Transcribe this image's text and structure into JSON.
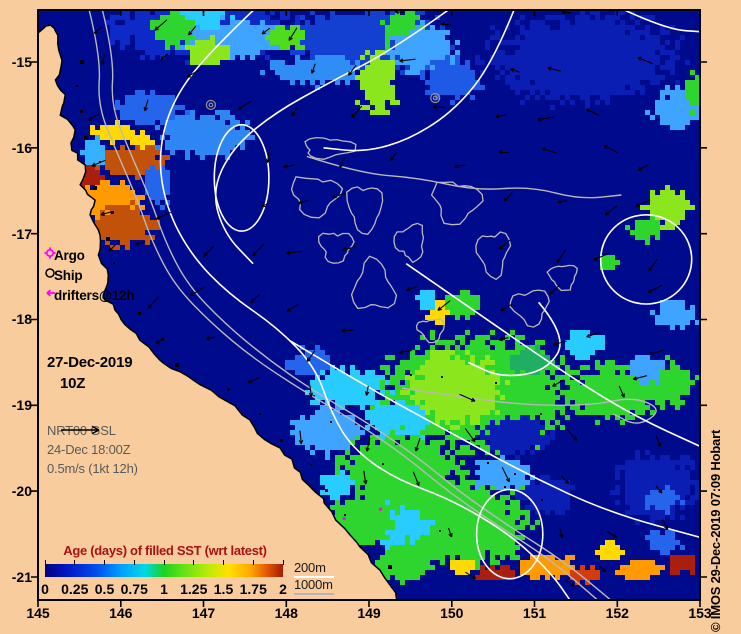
{
  "figure": {
    "background": "#f8cc9d",
    "ocean_color": "#000a8c",
    "land_color": "#f8cc9d",
    "copyright": "© IMOS 29-Dec-2019 07:09 Hobart"
  },
  "axes": {
    "lon_ticks": [
      "145",
      "146",
      "147",
      "148",
      "149",
      "150",
      "151",
      "152",
      "153"
    ],
    "lat_ticks": [
      "-15",
      "-16",
      "-17",
      "-18",
      "-19",
      "-20",
      "-21"
    ]
  },
  "legend": {
    "items": [
      {
        "symbol": "argo-symbol",
        "label": "Argo",
        "color": "#ff00ff"
      },
      {
        "symbol": "ship-symbol",
        "label": "Ship",
        "color": "#000000"
      },
      {
        "symbol": "drifter-symbol",
        "label": "drifters@12h",
        "color": "#ff00ff"
      }
    ]
  },
  "annotations": {
    "date": "27-Dec-2019",
    "time": "10Z",
    "model_lines": [
      "NRT00 GSL",
      "24-Dec 18:00Z",
      "0.5m/s (1kt 12h)"
    ]
  },
  "colorbar": {
    "title": "Age (days) of filled SST (wrt latest)",
    "title_color": "#a81212",
    "tick_labels": [
      "0",
      "0.25",
      "0.5",
      "0.75",
      "1",
      "1.25",
      "1.5",
      "1.75",
      "2"
    ],
    "value_range": [
      0,
      2
    ],
    "gradient_stops": [
      {
        "p": 0,
        "c": "#000082"
      },
      {
        "p": 0.1,
        "c": "#0018c8"
      },
      {
        "p": 0.22,
        "c": "#0050f0"
      },
      {
        "p": 0.32,
        "c": "#00a0ff"
      },
      {
        "p": 0.42,
        "c": "#00d8e6"
      },
      {
        "p": 0.5,
        "c": "#1ed21e"
      },
      {
        "p": 0.58,
        "c": "#64e114"
      },
      {
        "p": 0.68,
        "c": "#b4eb0a"
      },
      {
        "p": 0.77,
        "c": "#ffe100"
      },
      {
        "p": 0.86,
        "c": "#ffaa00"
      },
      {
        "p": 0.93,
        "c": "#e65a00"
      },
      {
        "p": 1,
        "c": "#a01c0a"
      }
    ],
    "depth_labels": [
      {
        "label": "200m",
        "line_color": "#ffffff"
      },
      {
        "label": "1000m",
        "line_color": "#b4b4b4"
      }
    ]
  },
  "map_layers": {
    "render_seed": 7,
    "coast": [
      [
        145.0,
        -14.66
      ],
      [
        145.15,
        -14.57
      ],
      [
        145.24,
        -14.69
      ],
      [
        145.29,
        -14.98
      ],
      [
        145.21,
        -15.21
      ],
      [
        145.33,
        -15.38
      ],
      [
        145.27,
        -15.62
      ],
      [
        145.45,
        -15.79
      ],
      [
        145.41,
        -16.03
      ],
      [
        145.57,
        -16.2
      ],
      [
        145.51,
        -16.43
      ],
      [
        145.69,
        -16.61
      ],
      [
        145.63,
        -16.78
      ],
      [
        145.75,
        -17.02
      ],
      [
        145.73,
        -17.25
      ],
      [
        145.85,
        -17.48
      ],
      [
        145.79,
        -17.71
      ],
      [
        145.93,
        -17.89
      ],
      [
        146.05,
        -18.06
      ],
      [
        146.23,
        -18.24
      ],
      [
        146.47,
        -18.47
      ],
      [
        146.72,
        -18.61
      ],
      [
        146.96,
        -18.76
      ],
      [
        147.26,
        -18.94
      ],
      [
        147.56,
        -19.17
      ],
      [
        147.74,
        -19.4
      ],
      [
        147.98,
        -19.58
      ],
      [
        148.17,
        -19.78
      ],
      [
        148.35,
        -20.01
      ],
      [
        148.55,
        -20.24
      ],
      [
        148.77,
        -20.51
      ],
      [
        148.99,
        -20.74
      ],
      [
        149.19,
        -21.01
      ],
      [
        149.34,
        -21.3
      ]
    ],
    "patches": [
      [
        147.0,
        -14.62,
        2.6,
        0.8,
        "#0d2ac8"
      ],
      [
        149.0,
        -14.75,
        2.2,
        0.9,
        "#1440d2"
      ],
      [
        151.6,
        -14.95,
        2.6,
        1.2,
        "#0b1eb4"
      ],
      [
        147.35,
        -14.72,
        1.5,
        0.5,
        "#3fa4ff"
      ],
      [
        148.35,
        -15.1,
        1.3,
        0.4,
        "#2f8df5"
      ],
      [
        146.95,
        -14.5,
        0.8,
        0.3,
        "#28ccff"
      ],
      [
        146.63,
        -14.62,
        0.6,
        0.45,
        "#2fd52f"
      ],
      [
        147.05,
        -14.9,
        0.55,
        0.4,
        "#8ce61e"
      ],
      [
        148.0,
        -14.72,
        0.5,
        0.35,
        "#4fdc1e"
      ],
      [
        149.1,
        -15.25,
        0.55,
        0.85,
        "#8ce61e"
      ],
      [
        149.4,
        -14.62,
        0.5,
        0.6,
        "#2fd52f"
      ],
      [
        149.65,
        -14.85,
        0.9,
        0.65,
        "#3fa4ff"
      ],
      [
        150.0,
        -15.2,
        0.8,
        0.55,
        "#1e5ae6"
      ],
      [
        152.75,
        -15.55,
        0.75,
        0.55,
        "#3fa4ff"
      ],
      [
        152.95,
        -15.35,
        0.3,
        0.5,
        "#2fd52f"
      ],
      [
        152.6,
        -16.7,
        0.65,
        0.55,
        "#8ce61e"
      ],
      [
        152.35,
        -16.95,
        0.45,
        0.35,
        "#2fd52f"
      ],
      [
        151.9,
        -17.35,
        0.3,
        0.25,
        "#2fd52f"
      ],
      [
        146.35,
        -15.55,
        0.9,
        0.45,
        "#2565ec"
      ],
      [
        147.0,
        -15.85,
        1.3,
        0.6,
        "#2e86f5"
      ],
      [
        145.95,
        -15.83,
        0.7,
        0.28,
        "#ffd900"
      ],
      [
        146.28,
        -15.95,
        0.35,
        0.25,
        "#ffd900"
      ],
      [
        146.15,
        -16.15,
        0.95,
        0.4,
        "#c2510a"
      ],
      [
        145.6,
        -16.33,
        0.45,
        0.4,
        "#aa1e0f"
      ],
      [
        145.9,
        -16.6,
        0.85,
        0.5,
        "#ff9a00"
      ],
      [
        146.05,
        -16.9,
        0.95,
        0.55,
        "#c2510a"
      ],
      [
        145.68,
        -16.05,
        0.3,
        0.45,
        "#35b1ff"
      ],
      [
        146.45,
        -16.45,
        0.4,
        0.5,
        "#2565ec"
      ],
      [
        149.85,
        -17.9,
        0.4,
        0.3,
        "#ffd900"
      ],
      [
        150.12,
        -17.82,
        0.5,
        0.35,
        "#2fd52f"
      ],
      [
        149.7,
        -17.75,
        0.3,
        0.25,
        "#28ccff"
      ],
      [
        150.3,
        -18.85,
        2.7,
        1.5,
        "#2fd52f"
      ],
      [
        150.05,
        -18.8,
        1.3,
        0.95,
        "#8ce61e"
      ],
      [
        151.95,
        -18.85,
        1.3,
        0.75,
        "#2fd52f"
      ],
      [
        152.6,
        -18.75,
        0.8,
        0.6,
        "#2fd52f"
      ],
      [
        150.95,
        -18.5,
        0.55,
        0.4,
        "#1fae62"
      ],
      [
        148.75,
        -18.8,
        1.05,
        0.55,
        "#28ccff"
      ],
      [
        148.5,
        -19.3,
        0.95,
        0.6,
        "#3fa4ff"
      ],
      [
        149.35,
        -19.2,
        0.85,
        0.5,
        "#28ccff"
      ],
      [
        148.3,
        -18.5,
        0.6,
        0.4,
        "#2565ec"
      ],
      [
        149.35,
        -19.75,
        1.7,
        0.95,
        "#2fd52f"
      ],
      [
        150.0,
        -20.35,
        2.3,
        1.2,
        "#2fd52f"
      ],
      [
        149.3,
        -20.4,
        0.95,
        0.55,
        "#28ccff"
      ],
      [
        150.6,
        -19.8,
        0.75,
        0.5,
        "#3fa4ff"
      ],
      [
        151.6,
        -18.3,
        0.55,
        0.35,
        "#28ccff"
      ],
      [
        152.7,
        -17.95,
        0.6,
        0.35,
        "#3fa4ff"
      ],
      [
        150.75,
        -19.35,
        0.95,
        0.5,
        "#0b1eb4"
      ],
      [
        151.15,
        -20.05,
        0.8,
        0.5,
        "#0b1eb4"
      ],
      [
        152.5,
        -19.95,
        1.2,
        0.9,
        "#0b1eb4"
      ],
      [
        152.55,
        -20.1,
        0.5,
        0.35,
        "#2565ec"
      ],
      [
        148.95,
        -20.3,
        0.9,
        0.7,
        "#2fd52f"
      ],
      [
        148.62,
        -19.92,
        0.5,
        0.4,
        "#28ccff"
      ],
      [
        149.4,
        -20.85,
        0.9,
        0.45,
        "#2fd52f"
      ],
      [
        152.35,
        -18.6,
        0.5,
        0.4,
        "#3fa4ff"
      ],
      [
        150.15,
        -20.88,
        0.35,
        0.22,
        "#ffd900"
      ],
      [
        150.55,
        -20.97,
        0.55,
        0.2,
        "#aa1e0f"
      ],
      [
        151.15,
        -20.88,
        0.85,
        0.3,
        "#ff9a00"
      ],
      [
        151.65,
        -20.98,
        0.5,
        0.2,
        "#d23c0a"
      ],
      [
        152.3,
        -20.92,
        0.65,
        0.28,
        "#ff9a00"
      ],
      [
        152.78,
        -20.85,
        0.4,
        0.25,
        "#aa1e0f"
      ],
      [
        152.55,
        -20.6,
        0.5,
        0.3,
        "#2565ec"
      ],
      [
        151.9,
        -20.7,
        0.4,
        0.25,
        "#ffd900"
      ]
    ],
    "contours_white": [
      {
        "pts": [
          [
            147.6,
            -14.4
          ],
          [
            147.0,
            -14.95
          ],
          [
            146.6,
            -15.5
          ],
          [
            146.45,
            -16.1
          ],
          [
            146.55,
            -16.7
          ],
          [
            146.85,
            -17.25
          ],
          [
            147.3,
            -17.7
          ],
          [
            147.9,
            -18.1
          ],
          [
            148.35,
            -18.55
          ],
          [
            148.55,
            -19.1
          ],
          [
            148.8,
            -19.5
          ],
          [
            149.3,
            -19.85
          ],
          [
            150.0,
            -20.1
          ],
          [
            150.7,
            -20.5
          ],
          [
            151.2,
            -20.95
          ],
          [
            151.45,
            -21.3
          ]
        ]
      },
      {
        "pts": [
          [
            149.95,
            -14.4
          ],
          [
            149.3,
            -14.85
          ],
          [
            148.5,
            -15.25
          ],
          [
            147.85,
            -15.6
          ],
          [
            147.35,
            -16.0
          ],
          [
            147.1,
            -16.5
          ],
          [
            147.25,
            -17.0
          ],
          [
            147.6,
            -17.35
          ]
        ]
      },
      {
        "pts": [
          [
            150.75,
            -14.4
          ],
          [
            150.5,
            -15.0
          ],
          [
            150.05,
            -15.55
          ],
          [
            149.5,
            -15.9
          ],
          [
            148.95,
            -16.05
          ],
          [
            148.45,
            -16.0
          ]
        ]
      },
      {
        "pts": [
          [
            152.1,
            -14.4
          ],
          [
            152.6,
            -14.62
          ],
          [
            153.05,
            -14.65
          ]
        ]
      },
      {
        "pts": [
          [
            148.05,
            -18.25
          ],
          [
            149.0,
            -18.8
          ],
          [
            149.95,
            -19.3
          ],
          [
            150.9,
            -19.8
          ],
          [
            151.9,
            -20.25
          ],
          [
            153.05,
            -20.55
          ]
        ]
      },
      {
        "pts": [
          [
            149.45,
            -17.35
          ],
          [
            150.35,
            -17.95
          ],
          [
            151.25,
            -18.55
          ],
          [
            152.15,
            -19.1
          ],
          [
            153.05,
            -19.5
          ]
        ]
      },
      {
        "pts": [
          [
            151.05,
            -17.8
          ],
          [
            151.4,
            -18.2
          ],
          [
            151.15,
            -18.6
          ],
          [
            150.6,
            -18.68
          ],
          [
            150.2,
            -18.5
          ]
        ]
      },
      {
        "ellipse": [
          147.46,
          -16.35,
          0.33,
          0.62
        ]
      },
      {
        "ellipse": [
          152.35,
          -17.3,
          0.55,
          0.52
        ]
      },
      {
        "ellipse": [
          150.7,
          -20.5,
          0.4,
          0.52
        ]
      }
    ],
    "contours_gray": [
      {
        "pts": [
          [
            145.62,
            -14.4
          ],
          [
            145.76,
            -14.95
          ],
          [
            145.72,
            -15.5
          ],
          [
            145.95,
            -16.05
          ],
          [
            146.2,
            -16.6
          ],
          [
            146.38,
            -17.1
          ],
          [
            146.65,
            -17.6
          ],
          [
            147.1,
            -18.05
          ],
          [
            147.6,
            -18.45
          ],
          [
            148.15,
            -18.8
          ],
          [
            148.85,
            -19.2
          ],
          [
            149.45,
            -19.6
          ],
          [
            149.95,
            -20.0
          ],
          [
            150.55,
            -20.4
          ],
          [
            151.2,
            -20.8
          ],
          [
            151.8,
            -21.3
          ]
        ]
      },
      {
        "pts": [
          [
            145.78,
            -14.4
          ],
          [
            145.92,
            -14.95
          ],
          [
            145.88,
            -15.5
          ],
          [
            146.11,
            -16.05
          ],
          [
            146.36,
            -16.6
          ],
          [
            146.54,
            -17.1
          ],
          [
            146.81,
            -17.6
          ],
          [
            147.26,
            -18.05
          ],
          [
            147.76,
            -18.45
          ],
          [
            148.31,
            -18.82
          ],
          [
            149.01,
            -19.22
          ],
          [
            149.61,
            -19.62
          ],
          [
            150.11,
            -20.02
          ],
          [
            150.71,
            -20.42
          ],
          [
            151.36,
            -20.82
          ],
          [
            151.96,
            -21.3
          ]
        ]
      },
      {
        "pts": [
          [
            149.4,
            -18.8
          ],
          [
            150.1,
            -18.9
          ],
          [
            150.9,
            -19.0
          ],
          [
            151.7,
            -19.0
          ],
          [
            152.2,
            -18.9
          ],
          [
            152.55,
            -19.05
          ],
          [
            152.25,
            -19.25
          ],
          [
            151.95,
            -19.1
          ]
        ]
      },
      {
        "pts": [
          [
            148.25,
            -16.1
          ],
          [
            148.9,
            -16.3
          ],
          [
            149.6,
            -16.35
          ],
          [
            150.3,
            -16.5
          ],
          [
            150.95,
            -16.45
          ],
          [
            151.55,
            -16.6
          ],
          [
            152.05,
            -16.55
          ]
        ]
      }
    ],
    "reef_rings": [
      [
        148.35,
        -16.55,
        0.28,
        0.22
      ],
      [
        148.95,
        -16.7,
        0.2,
        0.26
      ],
      [
        148.6,
        -17.15,
        0.2,
        0.17
      ],
      [
        149.05,
        -17.62,
        0.24,
        0.28
      ],
      [
        149.5,
        -17.1,
        0.17,
        0.2
      ],
      [
        150.05,
        -16.62,
        0.28,
        0.23
      ],
      [
        150.5,
        -17.22,
        0.19,
        0.24
      ],
      [
        150.95,
        -17.85,
        0.21,
        0.19
      ],
      [
        151.35,
        -17.5,
        0.16,
        0.14
      ],
      [
        149.75,
        -18.12,
        0.15,
        0.13
      ],
      [
        148.5,
        -16.0,
        0.3,
        0.12
      ]
    ],
    "eddy_rings": [
      [
        147.09,
        -15.5
      ],
      [
        149.8,
        -15.42
      ]
    ],
    "drifter_points": [
      [
        148.7,
        -20.32
      ],
      [
        149.14,
        -20.21
      ]
    ],
    "vectors": {
      "step_x": 50,
      "step_y": 46,
      "seed": 13,
      "base_len": 10
    }
  }
}
